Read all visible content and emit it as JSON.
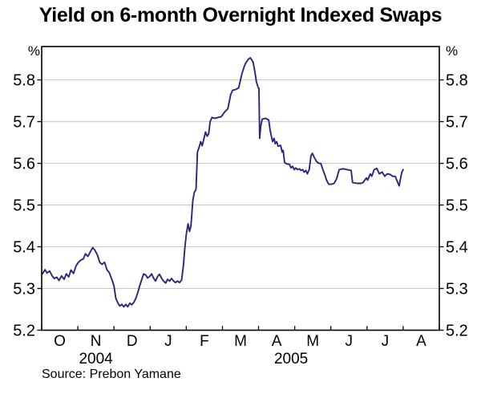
{
  "page": {
    "title": "Yield on 6-month Overnight Indexed Swaps",
    "source_note": "Source: Prebon Yamane"
  },
  "colors": {
    "line": "#32227e",
    "grid": "#c6c6c6",
    "axis": "#000000",
    "background": "#ffffff",
    "text": "#000000"
  },
  "chart_data": {
    "type": "line",
    "title": "Yield on 6-month Overnight Indexed Swaps",
    "source": "Source: Prebon Yamane",
    "grid": true,
    "legend": "none",
    "y_axis": {
      "unit": "%",
      "min": 5.2,
      "max": 5.88,
      "tick_values": [
        5.2,
        5.3,
        5.4,
        5.5,
        5.6,
        5.7,
        5.8
      ],
      "tick_labels": [
        "5.2",
        "5.3",
        "5.4",
        "5.5",
        "5.6",
        "5.7",
        "5.8"
      ],
      "labels_on_both_sides": true
    },
    "x_axis": {
      "months": [
        "O",
        "N",
        "D",
        "J",
        "F",
        "M",
        "A",
        "M",
        "J",
        "J",
        "A"
      ],
      "span_months": 11,
      "years": [
        {
          "label": "2004",
          "center": 1.5
        },
        {
          "label": "2005",
          "center": 6.9
        }
      ]
    },
    "series": [
      {
        "name": "Yield on 6-month overnight indexed swaps (%)",
        "color": "#32227e",
        "points": [
          [
            0.02,
            5.335
          ],
          [
            0.09,
            5.345
          ],
          [
            0.15,
            5.337
          ],
          [
            0.22,
            5.342
          ],
          [
            0.29,
            5.33
          ],
          [
            0.35,
            5.324
          ],
          [
            0.42,
            5.327
          ],
          [
            0.48,
            5.319
          ],
          [
            0.55,
            5.33
          ],
          [
            0.62,
            5.322
          ],
          [
            0.68,
            5.335
          ],
          [
            0.75,
            5.328
          ],
          [
            0.81,
            5.344
          ],
          [
            0.88,
            5.336
          ],
          [
            0.95,
            5.354
          ],
          [
            1.01,
            5.362
          ],
          [
            1.08,
            5.368
          ],
          [
            1.15,
            5.371
          ],
          [
            1.21,
            5.383
          ],
          [
            1.28,
            5.377
          ],
          [
            1.34,
            5.387
          ],
          [
            1.41,
            5.398
          ],
          [
            1.47,
            5.392
          ],
          [
            1.54,
            5.381
          ],
          [
            1.61,
            5.362
          ],
          [
            1.67,
            5.358
          ],
          [
            1.74,
            5.363
          ],
          [
            1.81,
            5.344
          ],
          [
            1.87,
            5.338
          ],
          [
            1.94,
            5.322
          ],
          [
            2.0,
            5.306
          ],
          [
            2.05,
            5.277
          ],
          [
            2.11,
            5.265
          ],
          [
            2.16,
            5.258
          ],
          [
            2.22,
            5.262
          ],
          [
            2.27,
            5.256
          ],
          [
            2.33,
            5.262
          ],
          [
            2.38,
            5.256
          ],
          [
            2.44,
            5.265
          ],
          [
            2.49,
            5.261
          ],
          [
            2.55,
            5.267
          ],
          [
            2.6,
            5.275
          ],
          [
            2.66,
            5.29
          ],
          [
            2.71,
            5.306
          ],
          [
            2.77,
            5.322
          ],
          [
            2.82,
            5.335
          ],
          [
            2.88,
            5.332
          ],
          [
            2.93,
            5.325
          ],
          [
            2.99,
            5.329
          ],
          [
            3.04,
            5.335
          ],
          [
            3.1,
            5.324
          ],
          [
            3.15,
            5.318
          ],
          [
            3.21,
            5.329
          ],
          [
            3.26,
            5.334
          ],
          [
            3.32,
            5.324
          ],
          [
            3.37,
            5.318
          ],
          [
            3.43,
            5.313
          ],
          [
            3.48,
            5.322
          ],
          [
            3.54,
            5.318
          ],
          [
            3.59,
            5.324
          ],
          [
            3.65,
            5.318
          ],
          [
            3.7,
            5.314
          ],
          [
            3.76,
            5.318
          ],
          [
            3.81,
            5.314
          ],
          [
            3.87,
            5.32
          ],
          [
            3.92,
            5.355
          ],
          [
            3.96,
            5.398
          ],
          [
            4.0,
            5.43
          ],
          [
            4.05,
            5.455
          ],
          [
            4.09,
            5.437
          ],
          [
            4.13,
            5.45
          ],
          [
            4.18,
            5.51
          ],
          [
            4.22,
            5.53
          ],
          [
            4.27,
            5.537
          ],
          [
            4.31,
            5.627
          ],
          [
            4.36,
            5.64
          ],
          [
            4.4,
            5.652
          ],
          [
            4.44,
            5.642
          ],
          [
            4.49,
            5.66
          ],
          [
            4.53,
            5.675
          ],
          [
            4.58,
            5.665
          ],
          [
            4.62,
            5.671
          ],
          [
            4.66,
            5.7
          ],
          [
            4.71,
            5.71
          ],
          [
            4.79,
            5.708
          ],
          [
            4.88,
            5.71
          ],
          [
            4.97,
            5.712
          ],
          [
            5.06,
            5.723
          ],
          [
            5.15,
            5.731
          ],
          [
            5.23,
            5.765
          ],
          [
            5.28,
            5.775
          ],
          [
            5.37,
            5.777
          ],
          [
            5.45,
            5.781
          ],
          [
            5.5,
            5.8
          ],
          [
            5.54,
            5.815
          ],
          [
            5.59,
            5.829
          ],
          [
            5.63,
            5.838
          ],
          [
            5.68,
            5.845
          ],
          [
            5.72,
            5.85
          ],
          [
            5.77,
            5.853
          ],
          [
            5.81,
            5.848
          ],
          [
            5.85,
            5.842
          ],
          [
            5.9,
            5.819
          ],
          [
            5.94,
            5.796
          ],
          [
            5.99,
            5.781
          ],
          [
            6.01,
            5.78
          ],
          [
            6.03,
            5.66
          ],
          [
            6.06,
            5.69
          ],
          [
            6.1,
            5.706
          ],
          [
            6.19,
            5.708
          ],
          [
            6.28,
            5.704
          ],
          [
            6.32,
            5.679
          ],
          [
            6.36,
            5.662
          ],
          [
            6.39,
            5.652
          ],
          [
            6.43,
            5.66
          ],
          [
            6.46,
            5.647
          ],
          [
            6.5,
            5.652
          ],
          [
            6.54,
            5.641
          ],
          [
            6.61,
            5.643
          ],
          [
            6.65,
            5.627
          ],
          [
            6.68,
            5.631
          ],
          [
            6.72,
            5.602
          ],
          [
            6.77,
            5.599
          ],
          [
            6.86,
            5.597
          ],
          [
            6.9,
            5.589
          ],
          [
            6.94,
            5.593
          ],
          [
            6.99,
            5.585
          ],
          [
            7.03,
            5.589
          ],
          [
            7.08,
            5.585
          ],
          [
            7.13,
            5.587
          ],
          [
            7.17,
            5.583
          ],
          [
            7.22,
            5.585
          ],
          [
            7.26,
            5.579
          ],
          [
            7.31,
            5.583
          ],
          [
            7.35,
            5.575
          ],
          [
            7.4,
            5.585
          ],
          [
            7.45,
            5.618
          ],
          [
            7.49,
            5.624
          ],
          [
            7.54,
            5.614
          ],
          [
            7.61,
            5.604
          ],
          [
            7.67,
            5.6
          ],
          [
            7.72,
            5.6
          ],
          [
            7.78,
            5.585
          ],
          [
            7.83,
            5.573
          ],
          [
            7.88,
            5.56
          ],
          [
            7.94,
            5.55
          ],
          [
            8.02,
            5.55
          ],
          [
            8.09,
            5.552
          ],
          [
            8.16,
            5.563
          ],
          [
            8.23,
            5.585
          ],
          [
            8.34,
            5.587
          ],
          [
            8.45,
            5.585
          ],
          [
            8.56,
            5.583
          ],
          [
            8.6,
            5.554
          ],
          [
            8.72,
            5.552
          ],
          [
            8.83,
            5.552
          ],
          [
            8.89,
            5.554
          ],
          [
            8.98,
            5.565
          ],
          [
            9.02,
            5.56
          ],
          [
            9.09,
            5.575
          ],
          [
            9.13,
            5.569
          ],
          [
            9.2,
            5.585
          ],
          [
            9.27,
            5.588
          ],
          [
            9.34,
            5.575
          ],
          [
            9.42,
            5.579
          ],
          [
            9.49,
            5.569
          ],
          [
            9.56,
            5.575
          ],
          [
            9.65,
            5.573
          ],
          [
            9.71,
            5.569
          ],
          [
            9.78,
            5.569
          ],
          [
            9.87,
            5.55
          ],
          [
            9.89,
            5.546
          ],
          [
            9.96,
            5.578
          ],
          [
            10.0,
            5.585
          ]
        ]
      }
    ]
  }
}
